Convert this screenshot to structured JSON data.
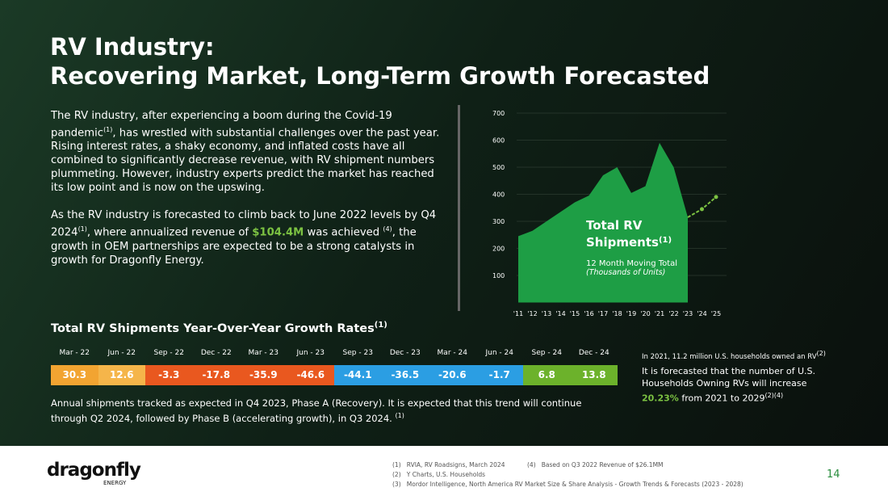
{
  "title": [
    "RV Industry:",
    "Recovering Market, Long-Term Growth Forecasted"
  ],
  "body": [
    [
      "The RV industry, after experiencing a boom during the Covid-19 pandemic",
      "(1)",
      ", has wrestled with substantial challenges over the past year. Rising interest rates, a shaky economy, and inflated costs have all combined to significantly decrease revenue, with RV shipment numbers plummeting. However, industry experts predict the market has reached its low point and is now on the upswing."
    ],
    [
      "As the RV industry is forecasted to climb back to June 2022 levels by Q4 2024",
      "(1)",
      ", where annualized revenue of ",
      "$104.4M",
      " was achieved ",
      "(4)",
      ", the growth in OEM partnerships are expected to be a strong catalysts in growth for Dragonfly Energy."
    ]
  ],
  "chart_data": {
    "type": "area",
    "title": [
      "Total RV Shipments",
      "(1)"
    ],
    "subtitle": [
      "12 Month Moving Total",
      "(Thousands of Units)"
    ],
    "categories": [
      "'11",
      "'12",
      "'13",
      "'14",
      "'15",
      "'16",
      "'17",
      "'18",
      "'19",
      "'20",
      "'21",
      "'22",
      "'23",
      "'24",
      "'25"
    ],
    "values": [
      245,
      265,
      300,
      335,
      370,
      395,
      470,
      500,
      405,
      430,
      590,
      500,
      315,
      345,
      390
    ],
    "color": "#1e9e45",
    "forecast_color": "#7cc242",
    "ylim": [
      0,
      700
    ],
    "yticks": [
      100,
      200,
      300,
      400,
      500,
      600,
      700
    ],
    "grid": true
  },
  "table": {
    "title": [
      "Total RV Shipments Year-Over-Year Growth Rates",
      "(1)"
    ],
    "headers": [
      "Mar - 22",
      "Jun - 22",
      "Sep - 22",
      "Dec - 22",
      "Mar - 23",
      "Jun - 23",
      "Sep - 23",
      "Dec - 23",
      "Mar - 24",
      "Jun - 24",
      "Sep - 24",
      "Dec - 24"
    ],
    "values": [
      30.3,
      12.6,
      -3.3,
      -17.8,
      -35.9,
      -46.6,
      -44.1,
      -36.5,
      -20.6,
      -1.7,
      6.8,
      13.8
    ],
    "colors": [
      "#f2a431",
      "#f5b54a",
      "#e9581f",
      "#e9581f",
      "#e9581f",
      "#e9581f",
      "#2b9ee3",
      "#2b9ee3",
      "#2b9ee3",
      "#2b9ee3",
      "#6cb22b",
      "#6cb22b"
    ],
    "note": [
      "Annual shipments tracked as expected in Q4 2023, Phase A (Recovery). It is expected that this trend will continue through Q2 2024, followed by Phase B (accelerating growth), in Q3 2024. ",
      "(1)"
    ]
  },
  "side": {
    "note": [
      "In 2021, 11.2 million U.S. households owned an RV",
      "(2)"
    ],
    "forecast": [
      "It is forecasted that the number of U.S. Households Owning RVs will increase ",
      "20.23%",
      " from 2021 to 2029",
      "(2)(4)"
    ]
  },
  "footer": {
    "logo": "dragonfly",
    "logo_sub": "ENERGY",
    "page": "14",
    "notes": [
      [
        "(1)",
        "RVIA, RV Roadsigns, March 2024"
      ],
      [
        "(4)",
        "Based on Q3 2022 Revenue of $26.1MM"
      ],
      [
        "(2)",
        "Y Charts, U.S. Households"
      ],
      [
        "(3)",
        "Mordor Intelligence, North America RV Market Size & Share Analysis - Growth Trends & Forecasts (2023 - 2028)"
      ]
    ]
  }
}
